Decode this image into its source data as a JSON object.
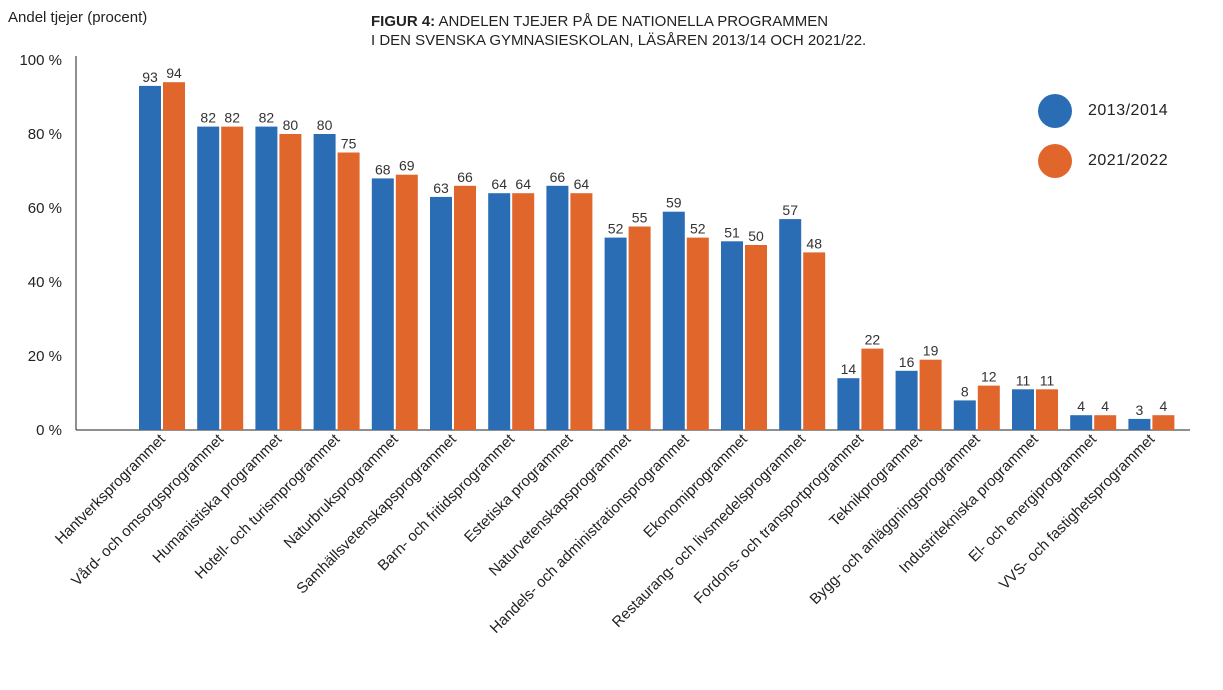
{
  "chart_data": {
    "type": "bar",
    "title_prefix": "FIGUR 4:",
    "title_line1": "ANDELEN TJEJER PÅ DE NATIONELLA PROGRAMMEN",
    "title_line2": "I DEN SVENSKA GYMNASIESKOLAN, LÄSÅREN 2013/14 OCH 2021/22.",
    "ylabel": "Andel tjejer (procent)",
    "ylim": [
      0,
      100
    ],
    "yticks": [
      0,
      20,
      40,
      60,
      80,
      100
    ],
    "ytick_labels": [
      "0 %",
      "20 %",
      "40 %",
      "60 %",
      "80 %",
      "100 %"
    ],
    "legend_position": "top-right",
    "categories": [
      "Hantverksprogrammet",
      "Vård- och omsorgsprogrammet",
      "Humanistiska programmet",
      "Hotell- och turismprogrammet",
      "Naturbruksprogrammet",
      "Samhällsvetenskapsprogrammet",
      "Barn- och fritidsprogrammet",
      "Estetiska programmet",
      "Naturvetenskapsprogrammet",
      "Handels- och administrationsprogrammet",
      "Ekonomiprogrammet",
      "Restaurang- och livsmedelsprogrammet",
      "Fordons- och transportprogrammet",
      "Teknikprogrammet",
      "Bygg- och anläggningsprogrammet",
      "Industritekniska programmet",
      "El- och energiprogrammet",
      "VVS- och fastighetsprogrammet"
    ],
    "series": [
      {
        "name": "2013/2014",
        "color": "#2a6db5",
        "values": [
          93,
          82,
          82,
          80,
          68,
          63,
          64,
          66,
          52,
          59,
          51,
          57,
          14,
          16,
          8,
          11,
          4,
          3
        ]
      },
      {
        "name": "2021/2022",
        "color": "#e1662b",
        "values": [
          94,
          82,
          80,
          75,
          69,
          66,
          64,
          64,
          55,
          52,
          50,
          48,
          22,
          19,
          12,
          11,
          4,
          4
        ]
      }
    ]
  }
}
